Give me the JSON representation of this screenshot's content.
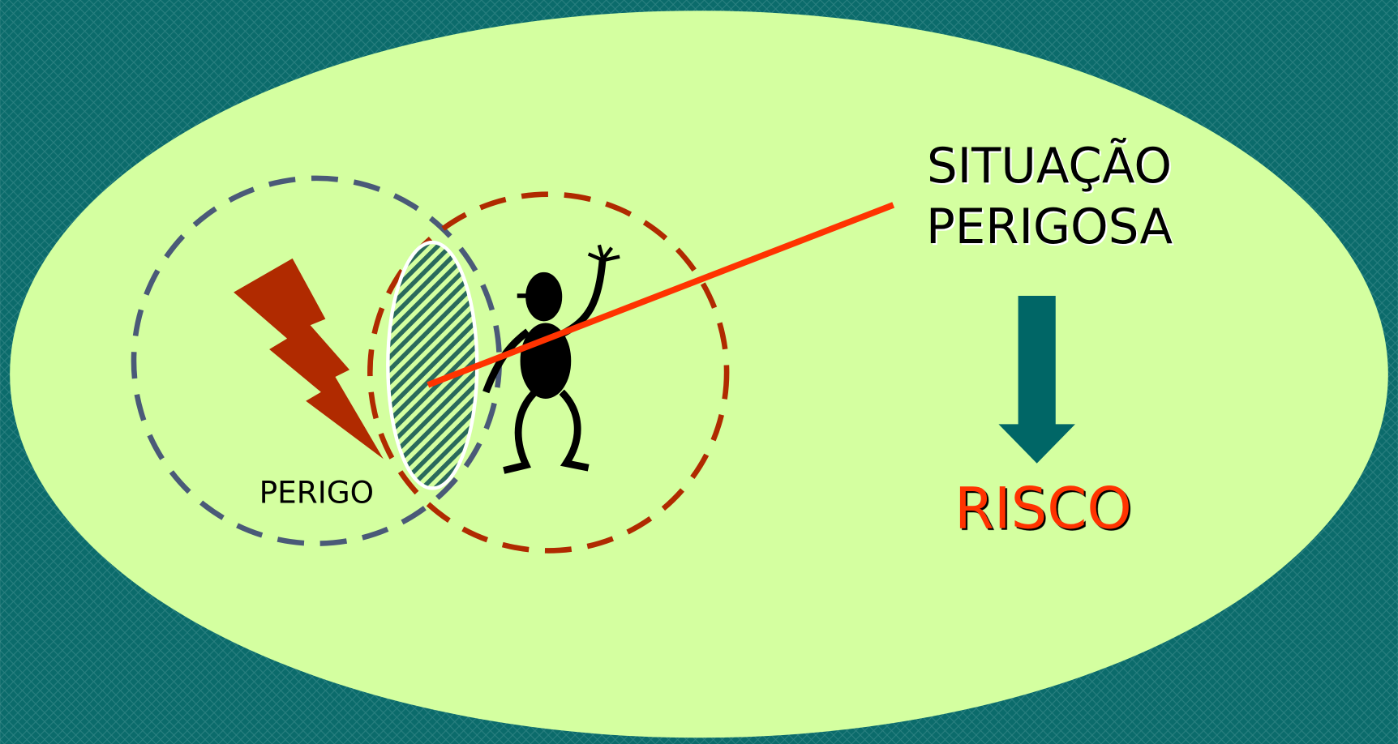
{
  "labels": {
    "hazard": "PERIGO",
    "situation": [
      "SITUAÇÃO",
      "PERIGOSA"
    ],
    "risk": "RISCO"
  }
}
